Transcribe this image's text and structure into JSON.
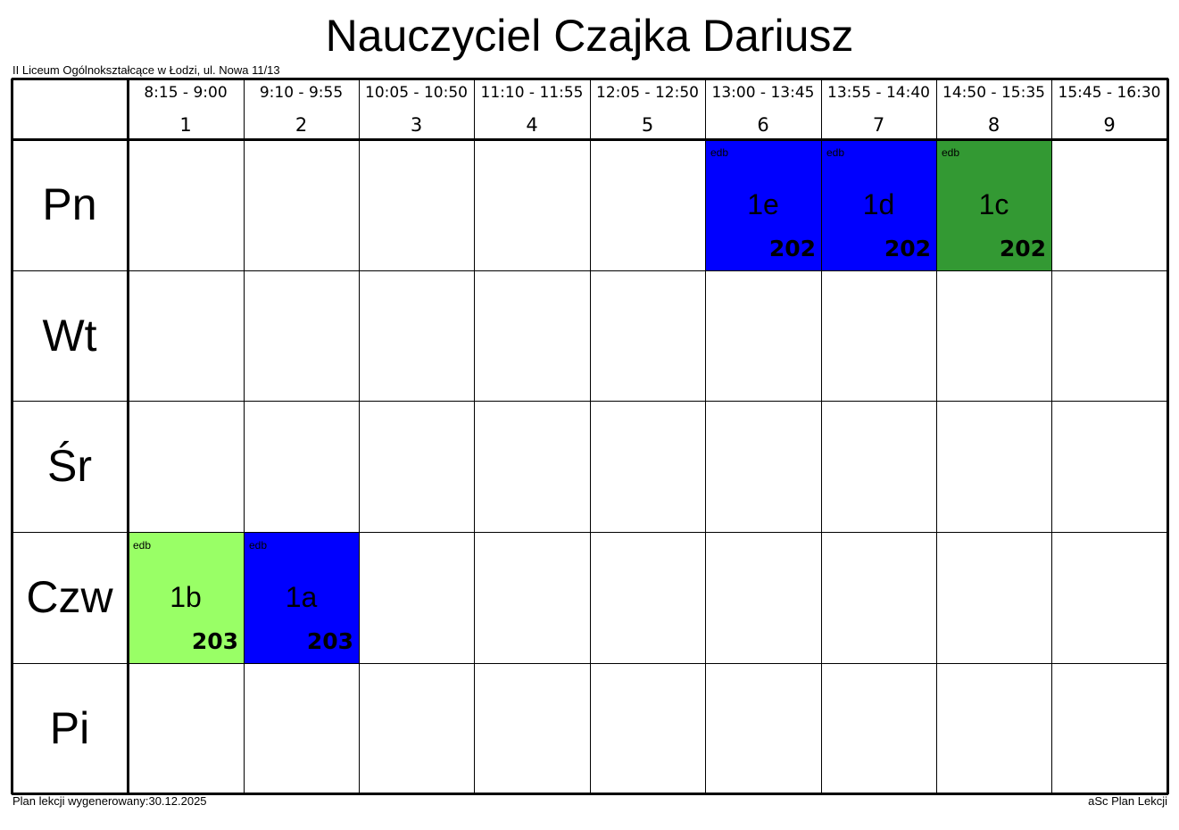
{
  "title": "Nauczyciel Czajka Dariusz",
  "school": "II Liceum Ogólnokształcące w Łodzi, ul. Nowa 11/13",
  "footer": {
    "generated": "Plan lekcji wygenerowany:30.12.2025",
    "software": "aSc Plan Lekcji"
  },
  "periods": [
    {
      "num": "1",
      "time": "8:15 - 9:00"
    },
    {
      "num": "2",
      "time": "9:10 - 9:55"
    },
    {
      "num": "3",
      "time": "10:05 - 10:50"
    },
    {
      "num": "4",
      "time": "11:10 - 11:55"
    },
    {
      "num": "5",
      "time": "12:05 - 12:50"
    },
    {
      "num": "6",
      "time": "13:00 - 13:45"
    },
    {
      "num": "7",
      "time": "13:55 - 14:40"
    },
    {
      "num": "8",
      "time": "14:50 - 15:35"
    },
    {
      "num": "9",
      "time": "15:45 - 16:30"
    }
  ],
  "days": [
    "Pn",
    "Wt",
    "Śr",
    "Czw",
    "Pi"
  ],
  "lessons": [
    {
      "day": "Pn",
      "period": "6",
      "subject": "edb",
      "class": "1e",
      "room": "202",
      "color": "#0000ff"
    },
    {
      "day": "Pn",
      "period": "7",
      "subject": "edb",
      "class": "1d",
      "room": "202",
      "color": "#0000ff"
    },
    {
      "day": "Pn",
      "period": "8",
      "subject": "edb",
      "class": "1c",
      "room": "202",
      "color": "#339933"
    },
    {
      "day": "Czw",
      "period": "1",
      "subject": "edb",
      "class": "1b",
      "room": "203",
      "color": "#99ff66"
    },
    {
      "day": "Czw",
      "period": "2",
      "subject": "edb",
      "class": "1a",
      "room": "203",
      "color": "#0000ff"
    }
  ]
}
